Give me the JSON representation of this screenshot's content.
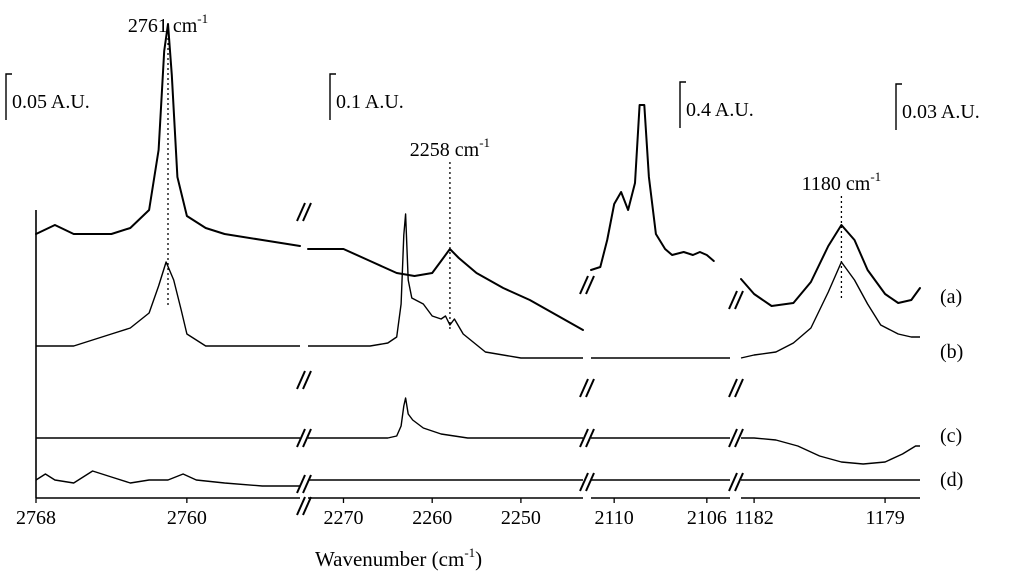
{
  "chart_data": {
    "type": "line",
    "title": "",
    "xlabel_main": "Wavenumber (cm",
    "xlabel_sup": "-1",
    "xlabel_tail": ")",
    "ylabel": "",
    "panels": [
      {
        "name": "panel-1",
        "xlim": [
          2768,
          2754
        ],
        "ticks": [
          {
            "value": 2768,
            "label": "2768"
          },
          {
            "value": 2760,
            "label": "2760"
          }
        ],
        "scale_bar": "0.05 A.U.",
        "annotation": {
          "value": "2761 cm",
          "sup": "-1",
          "x": 2761
        }
      },
      {
        "name": "panel-2",
        "xlim": [
          2274,
          2243
        ],
        "ticks": [
          {
            "value": 2270,
            "label": "2270"
          },
          {
            "value": 2260,
            "label": "2260"
          },
          {
            "value": 2250,
            "label": "2250"
          }
        ],
        "scale_bar": "0.1 A.U.",
        "annotation": {
          "value": "2258 cm",
          "sup": "-1",
          "x": 2258
        }
      },
      {
        "name": "panel-3",
        "xlim": [
          2111,
          2105
        ],
        "ticks": [
          {
            "value": 2110,
            "label": "2110"
          },
          {
            "value": 2106,
            "label": "2106"
          }
        ],
        "scale_bar": "0.4 A.U.",
        "annotation": null
      },
      {
        "name": "panel-4",
        "xlim": [
          1182.3,
          1178.2
        ],
        "ticks": [
          {
            "value": 1182,
            "label": "1182"
          },
          {
            "value": 1179,
            "label": "1179"
          }
        ],
        "scale_bar": "0.03 A.U.",
        "annotation": {
          "value": "1180 cm",
          "sup": "-1",
          "x": 1180
        }
      }
    ],
    "series": [
      {
        "label": "(a)",
        "panels": [
          [
            [
              2768,
              0.17
            ],
            [
              2767,
              0.2
            ],
            [
              2766,
              0.17
            ],
            [
              2764,
              0.17
            ],
            [
              2763,
              0.19
            ],
            [
              2762,
              0.25
            ],
            [
              2761.5,
              0.45
            ],
            [
              2761.2,
              0.78
            ],
            [
              2761,
              0.87
            ],
            [
              2760.8,
              0.7
            ],
            [
              2760.5,
              0.36
            ],
            [
              2760,
              0.23
            ],
            [
              2759,
              0.19
            ],
            [
              2758,
              0.17
            ],
            [
              2756,
              0.15
            ],
            [
              2754,
              0.13
            ]
          ],
          [
            [
              2274,
              0.12
            ],
            [
              2270,
              0.12
            ],
            [
              2267,
              0.08
            ],
            [
              2264,
              0.04
            ],
            [
              2262,
              0.03
            ],
            [
              2260,
              0.04
            ],
            [
              2259,
              0.08
            ],
            [
              2258,
              0.12
            ],
            [
              2257,
              0.09
            ],
            [
              2255,
              0.04
            ],
            [
              2252,
              -0.01
            ],
            [
              2249,
              -0.05
            ],
            [
              2246,
              -0.1
            ],
            [
              2243,
              -0.15
            ]
          ],
          [
            [
              2111,
              0.05
            ],
            [
              2110.6,
              0.06
            ],
            [
              2110.3,
              0.15
            ],
            [
              2110,
              0.27
            ],
            [
              2109.7,
              0.31
            ],
            [
              2109.4,
              0.25
            ],
            [
              2109.1,
              0.34
            ],
            [
              2108.9,
              0.6
            ],
            [
              2108.7,
              0.6
            ],
            [
              2108.5,
              0.36
            ],
            [
              2108.2,
              0.17
            ],
            [
              2107.8,
              0.12
            ],
            [
              2107.5,
              0.1
            ],
            [
              2107,
              0.11
            ],
            [
              2106.6,
              0.1
            ],
            [
              2106.3,
              0.11
            ],
            [
              2106,
              0.1
            ],
            [
              2105.7,
              0.08
            ]
          ],
          [
            [
              1182.3,
              0.02
            ],
            [
              1182,
              -0.03
            ],
            [
              1181.6,
              -0.07
            ],
            [
              1181.1,
              -0.06
            ],
            [
              1180.7,
              0.01
            ],
            [
              1180.3,
              0.13
            ],
            [
              1180,
              0.2
            ],
            [
              1179.7,
              0.15
            ],
            [
              1179.4,
              0.05
            ],
            [
              1179,
              -0.03
            ],
            [
              1178.7,
              -0.06
            ],
            [
              1178.4,
              -0.05
            ],
            [
              1178.2,
              -0.01
            ]
          ]
        ]
      },
      {
        "label": "(b)",
        "panels": [
          [
            [
              2768,
              0.08
            ],
            [
              2766,
              0.08
            ],
            [
              2764,
              0.12
            ],
            [
              2763,
              0.14
            ],
            [
              2762,
              0.19
            ],
            [
              2761.5,
              0.28
            ],
            [
              2761.1,
              0.36
            ],
            [
              2760.7,
              0.3
            ],
            [
              2760.3,
              0.2
            ],
            [
              2760,
              0.12
            ],
            [
              2759,
              0.08
            ],
            [
              2757,
              0.08
            ],
            [
              2754,
              0.08
            ]
          ],
          [
            [
              2274,
              0.08
            ],
            [
              2270,
              0.08
            ],
            [
              2267,
              0.08
            ],
            [
              2265,
              0.09
            ],
            [
              2264,
              0.11
            ],
            [
              2263.5,
              0.22
            ],
            [
              2263.2,
              0.45
            ],
            [
              2263,
              0.52
            ],
            [
              2262.7,
              0.3
            ],
            [
              2262.3,
              0.24
            ],
            [
              2261,
              0.22
            ],
            [
              2260,
              0.18
            ],
            [
              2259,
              0.17
            ],
            [
              2258.5,
              0.18
            ],
            [
              2258,
              0.15
            ],
            [
              2257.5,
              0.17
            ],
            [
              2256.5,
              0.12
            ],
            [
              2254,
              0.06
            ],
            [
              2250,
              0.04
            ],
            [
              2246,
              0.04
            ],
            [
              2243,
              0.04
            ]
          ],
          [
            [
              2111,
              0.04
            ],
            [
              2110,
              0.04
            ],
            [
              2108,
              0.04
            ],
            [
              2106,
              0.04
            ],
            [
              2105,
              0.04
            ]
          ],
          [
            [
              1182.3,
              0.04
            ],
            [
              1182,
              0.05
            ],
            [
              1181.5,
              0.06
            ],
            [
              1181.1,
              0.09
            ],
            [
              1180.7,
              0.14
            ],
            [
              1180.3,
              0.26
            ],
            [
              1180,
              0.36
            ],
            [
              1179.7,
              0.3
            ],
            [
              1179.4,
              0.22
            ],
            [
              1179.1,
              0.15
            ],
            [
              1178.7,
              0.12
            ],
            [
              1178.4,
              0.11
            ],
            [
              1178.2,
              0.11
            ]
          ]
        ]
      },
      {
        "label": "(c)",
        "panels": [
          [
            [
              2768,
              0.0
            ],
            [
              2762,
              0.0
            ],
            [
              2758,
              0.0
            ],
            [
              2754,
              0.0
            ]
          ],
          [
            [
              2274,
              0.0
            ],
            [
              2268,
              0.0
            ],
            [
              2265,
              0.0
            ],
            [
              2264,
              0.01
            ],
            [
              2263.5,
              0.06
            ],
            [
              2263.2,
              0.16
            ],
            [
              2263,
              0.2
            ],
            [
              2262.7,
              0.12
            ],
            [
              2262.2,
              0.09
            ],
            [
              2261,
              0.05
            ],
            [
              2259,
              0.02
            ],
            [
              2256,
              0.0
            ],
            [
              2250,
              0.0
            ],
            [
              2243,
              0.0
            ]
          ],
          [
            [
              2111,
              0.0
            ],
            [
              2108,
              0.0
            ],
            [
              2105,
              0.0
            ]
          ],
          [
            [
              1182.3,
              0.0
            ],
            [
              1182,
              0.0
            ],
            [
              1181.5,
              -0.01
            ],
            [
              1181,
              -0.04
            ],
            [
              1180.5,
              -0.09
            ],
            [
              1180,
              -0.12
            ],
            [
              1179.5,
              -0.13
            ],
            [
              1179,
              -0.12
            ],
            [
              1178.6,
              -0.08
            ],
            [
              1178.3,
              -0.04
            ],
            [
              1178.2,
              -0.04
            ]
          ]
        ]
      },
      {
        "label": "(d)",
        "panels": [
          [
            [
              2768,
              0.0
            ],
            [
              2767.5,
              0.02
            ],
            [
              2767,
              0.0
            ],
            [
              2766,
              -0.01
            ],
            [
              2765,
              0.03
            ],
            [
              2764,
              0.01
            ],
            [
              2763,
              -0.01
            ],
            [
              2762,
              0.0
            ],
            [
              2761,
              0.0
            ],
            [
              2760.2,
              0.02
            ],
            [
              2759.5,
              0.0
            ],
            [
              2758,
              -0.01
            ],
            [
              2756,
              -0.02
            ],
            [
              2754,
              -0.02
            ]
          ],
          [
            [
              2274,
              0.0
            ],
            [
              2270,
              0.0
            ],
            [
              2260,
              0.0
            ],
            [
              2250,
              0.0
            ],
            [
              2243,
              0.0
            ]
          ],
          [
            [
              2111,
              0.0
            ],
            [
              2108,
              0.0
            ],
            [
              2105,
              0.0
            ]
          ],
          [
            [
              1182.3,
              0.0
            ],
            [
              1180,
              0.0
            ],
            [
              1178.2,
              0.0
            ]
          ]
        ]
      }
    ]
  }
}
